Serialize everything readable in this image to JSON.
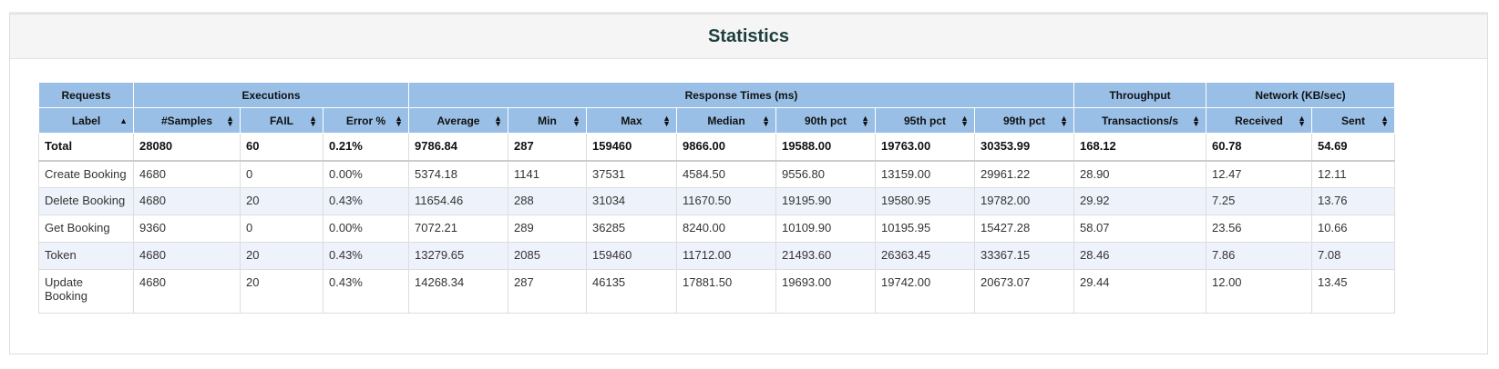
{
  "title": "Statistics",
  "groups": [
    {
      "label": "Requests",
      "span": 1
    },
    {
      "label": "Executions",
      "span": 3
    },
    {
      "label": "Response Times (ms)",
      "span": 7
    },
    {
      "label": "Throughput",
      "span": 1
    },
    {
      "label": "Network (KB/sec)",
      "span": 2
    }
  ],
  "columns": [
    {
      "label": "Label",
      "sort": "asc"
    },
    {
      "label": "#Samples",
      "sort": "both"
    },
    {
      "label": "FAIL",
      "sort": "both"
    },
    {
      "label": "Error %",
      "sort": "both"
    },
    {
      "label": "Average",
      "sort": "both"
    },
    {
      "label": "Min",
      "sort": "both"
    },
    {
      "label": "Max",
      "sort": "both"
    },
    {
      "label": "Median",
      "sort": "both"
    },
    {
      "label": "90th pct",
      "sort": "both"
    },
    {
      "label": "95th pct",
      "sort": "both"
    },
    {
      "label": "99th pct",
      "sort": "both"
    },
    {
      "label": "Transactions/s",
      "sort": "both"
    },
    {
      "label": "Received",
      "sort": "both"
    },
    {
      "label": "Sent",
      "sort": "both"
    }
  ],
  "total": [
    "Total",
    "28080",
    "60",
    "0.21%",
    "9786.84",
    "287",
    "159460",
    "9866.00",
    "19588.00",
    "19763.00",
    "30353.99",
    "168.12",
    "60.78",
    "54.69"
  ],
  "rows": [
    [
      "Create Booking",
      "4680",
      "0",
      "0.00%",
      "5374.18",
      "1141",
      "37531",
      "4584.50",
      "9556.80",
      "13159.00",
      "29961.22",
      "28.90",
      "12.47",
      "12.11"
    ],
    [
      "Delete Booking",
      "4680",
      "20",
      "0.43%",
      "11654.46",
      "288",
      "31034",
      "11670.50",
      "19195.90",
      "19580.95",
      "19782.00",
      "29.92",
      "7.25",
      "13.76"
    ],
    [
      "Get Booking",
      "9360",
      "0",
      "0.00%",
      "7072.21",
      "289",
      "36285",
      "8240.00",
      "10109.90",
      "10195.95",
      "15427.28",
      "58.07",
      "23.56",
      "10.66"
    ],
    [
      "Token",
      "4680",
      "20",
      "0.43%",
      "13279.65",
      "2085",
      "159460",
      "11712.00",
      "21493.60",
      "26363.45",
      "33367.15",
      "28.46",
      "7.86",
      "7.08"
    ],
    [
      "Update Booking",
      "4680",
      "20",
      "0.43%",
      "14268.34",
      "287",
      "46135",
      "17881.50",
      "19693.00",
      "19742.00",
      "20673.07",
      "29.44",
      "12.00",
      "13.45"
    ]
  ]
}
